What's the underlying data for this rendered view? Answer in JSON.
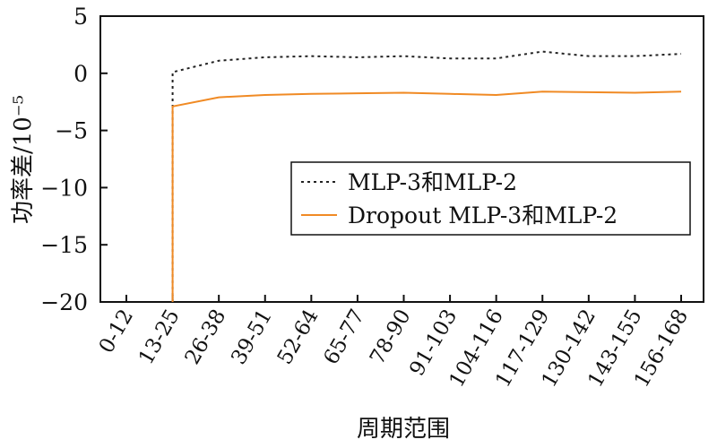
{
  "chart_data": {
    "type": "line",
    "title": "",
    "xlabel": "周期范围",
    "ylabel": "功率差/10⁻⁵",
    "ylim": [
      -20,
      5
    ],
    "yticks": [
      "5",
      "0",
      "−5",
      "−10",
      "−15",
      "−20"
    ],
    "ytick_values": [
      5,
      0,
      -5,
      -10,
      -15,
      -20
    ],
    "categories": [
      "0-12",
      "13-25",
      "26-38",
      "39-51",
      "52-64",
      "65-77",
      "78-90",
      "91-103",
      "104-116",
      "117-129",
      "130-142",
      "143-155",
      "156-168"
    ],
    "grid": false,
    "legend_position": "center-right",
    "series": [
      {
        "name": "MLP-3和MLP-2",
        "color": "#222222",
        "style": "dotted",
        "start_from": -20,
        "values": [
          null,
          0.1,
          1.1,
          1.4,
          1.5,
          1.4,
          1.5,
          1.3,
          1.3,
          1.9,
          1.5,
          1.5,
          1.7
        ]
      },
      {
        "name": "Dropout MLP-3和MLP-2",
        "color": "#f08a24",
        "style": "solid",
        "start_from": -20,
        "values": [
          null,
          -2.9,
          -2.1,
          -1.9,
          -1.8,
          -1.75,
          -1.7,
          -1.8,
          -1.9,
          -1.6,
          -1.65,
          -1.7,
          -1.6
        ]
      }
    ]
  }
}
